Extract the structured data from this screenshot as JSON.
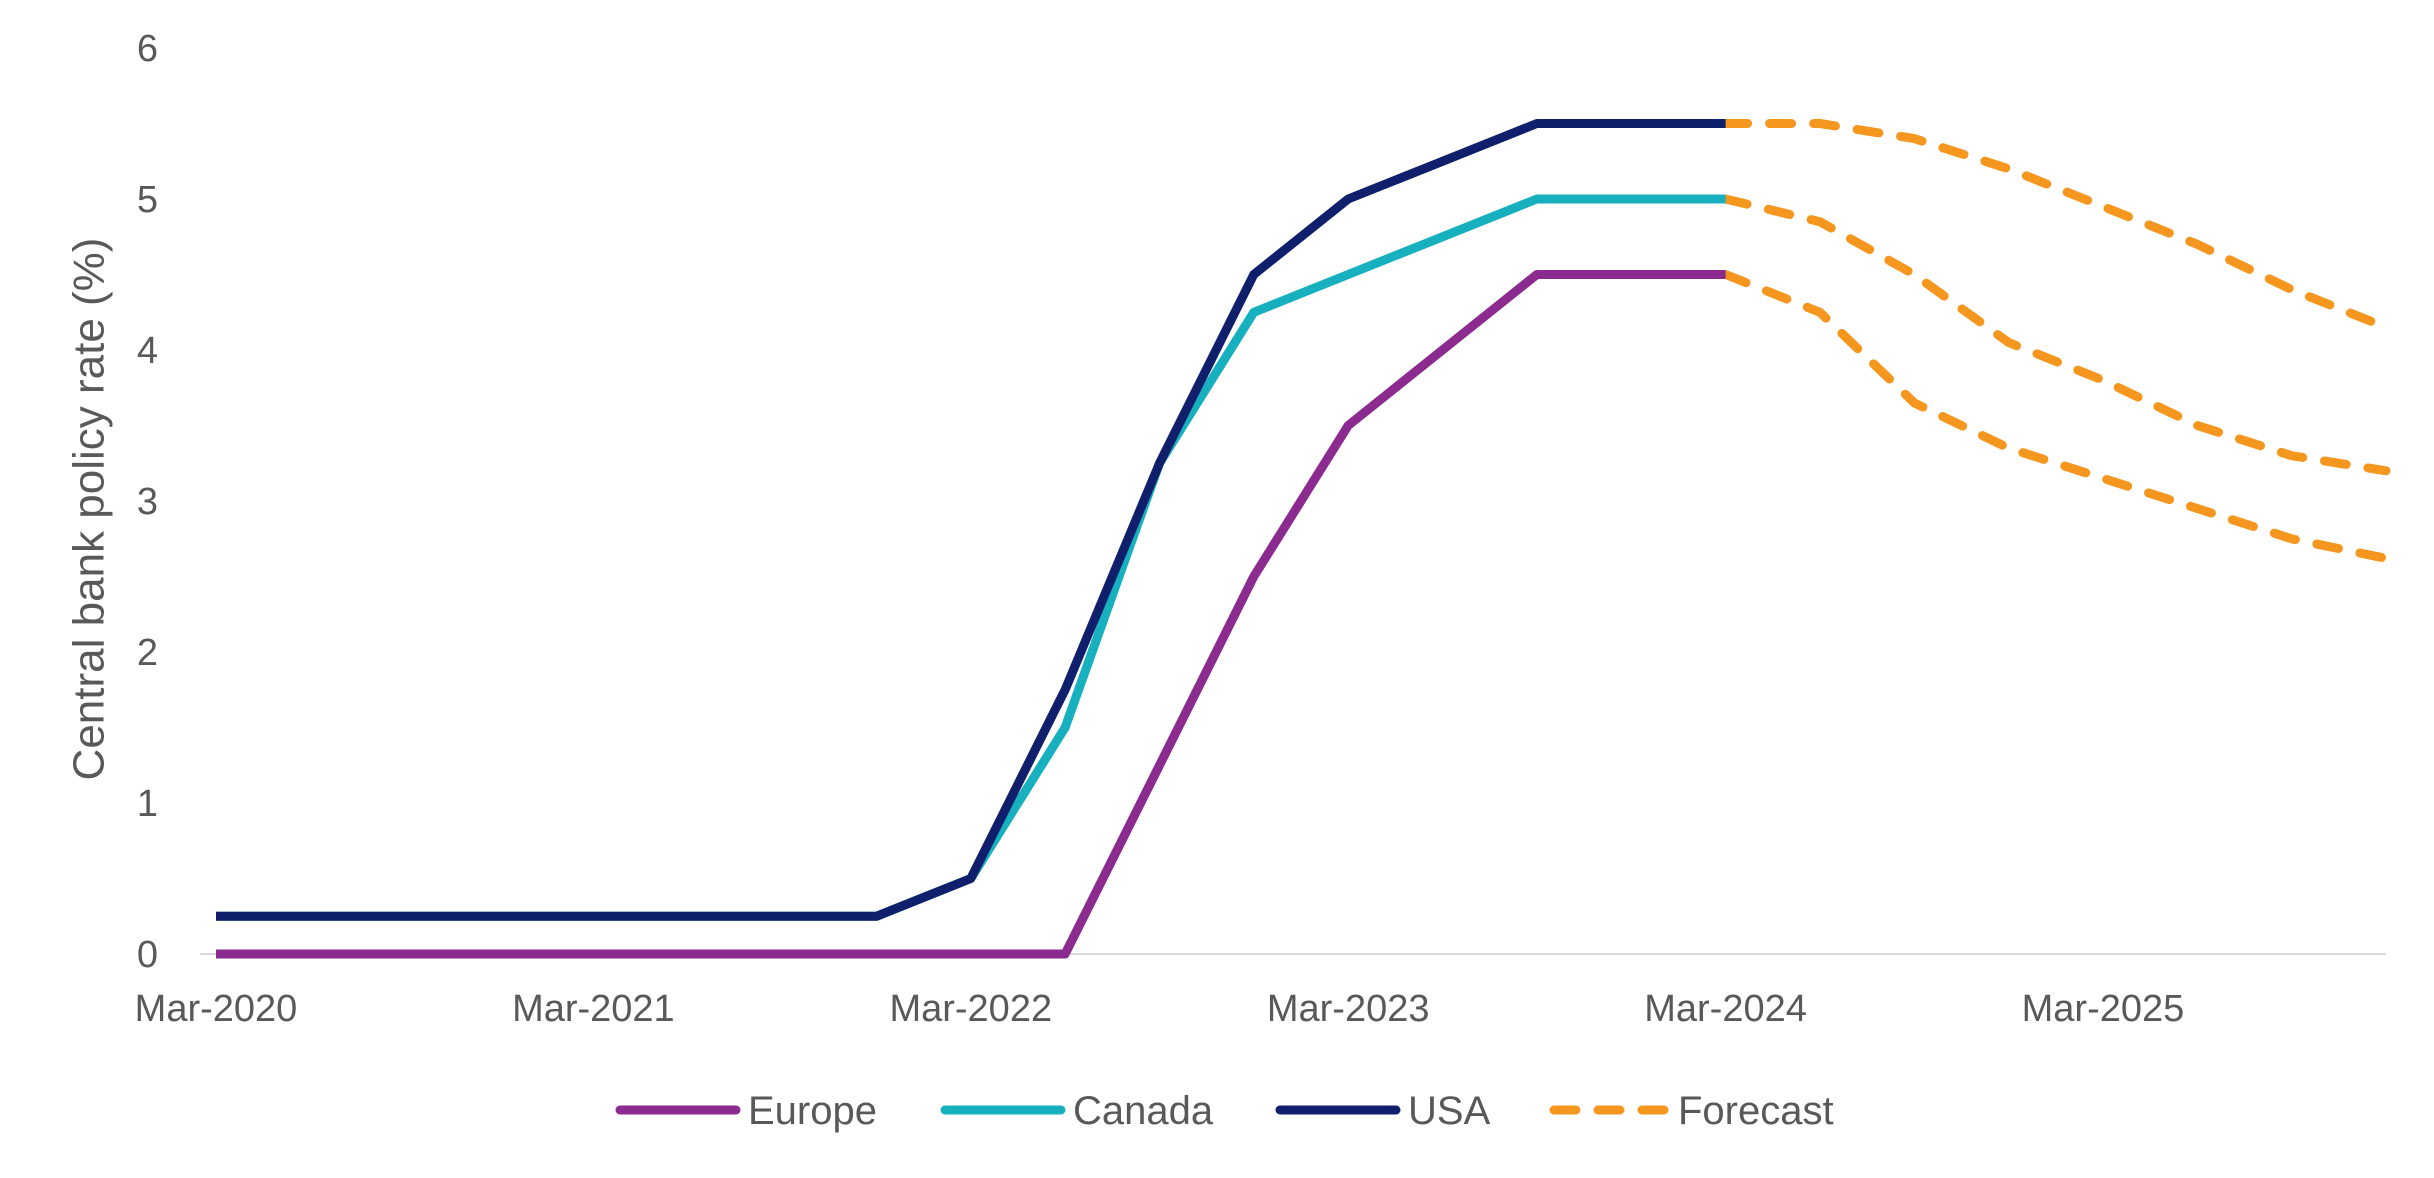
{
  "chart_data": {
    "type": "line",
    "title": "",
    "xlabel": "",
    "ylabel": "Central bank policy rate (%)",
    "ylim": [
      0,
      6
    ],
    "yticks": [
      0,
      1,
      2,
      3,
      4,
      5,
      6
    ],
    "xlim": [
      "Mar-2020",
      "Sep-2025"
    ],
    "x_tick_labels": [
      "Mar-2020",
      "Mar-2021",
      "Mar-2022",
      "Mar-2023",
      "Mar-2024",
      "Mar-2025"
    ],
    "grid": false,
    "legend_position": "bottom",
    "series": [
      {
        "name": "Europe",
        "color": "#8B2A8F",
        "style": "solid",
        "points": [
          [
            "2020-03",
            0
          ],
          [
            "2021-03",
            0
          ],
          [
            "2022-03",
            0
          ],
          [
            "2022-06",
            0
          ],
          [
            "2022-09",
            1.25
          ],
          [
            "2022-12",
            2.5
          ],
          [
            "2023-03",
            3.5
          ],
          [
            "2023-06",
            4.0
          ],
          [
            "2023-09",
            4.5
          ],
          [
            "2023-12",
            4.5
          ],
          [
            "2024-03",
            4.5
          ]
        ]
      },
      {
        "name": "Canada",
        "color": "#16B0BF",
        "style": "solid",
        "points": [
          [
            "2020-03",
            0.25
          ],
          [
            "2021-03",
            0.25
          ],
          [
            "2021-12",
            0.25
          ],
          [
            "2022-03",
            0.5
          ],
          [
            "2022-06",
            1.5
          ],
          [
            "2022-09",
            3.25
          ],
          [
            "2022-12",
            4.25
          ],
          [
            "2023-03",
            4.5
          ],
          [
            "2023-06",
            4.75
          ],
          [
            "2023-09",
            5.0
          ],
          [
            "2023-12",
            5.0
          ],
          [
            "2024-03",
            5.0
          ]
        ]
      },
      {
        "name": "USA",
        "color": "#0F1F6B",
        "style": "solid",
        "points": [
          [
            "2020-03",
            0.25
          ],
          [
            "2021-03",
            0.25
          ],
          [
            "2021-12",
            0.25
          ],
          [
            "2022-03",
            0.5
          ],
          [
            "2022-06",
            1.75
          ],
          [
            "2022-09",
            3.25
          ],
          [
            "2022-12",
            4.5
          ],
          [
            "2023-03",
            5.0
          ],
          [
            "2023-06",
            5.25
          ],
          [
            "2023-09",
            5.5
          ],
          [
            "2023-12",
            5.5
          ],
          [
            "2024-03",
            5.5
          ]
        ]
      },
      {
        "name": "Forecast",
        "color": "#F5961E",
        "style": "dashed",
        "show_in_legend": true,
        "points": [
          [
            "2024-03",
            5.5
          ],
          [
            "2024-06",
            5.5
          ],
          [
            "2024-09",
            5.4
          ],
          [
            "2024-12",
            5.2
          ],
          [
            "2025-03",
            4.95
          ],
          [
            "2025-06",
            4.7
          ],
          [
            "2025-09",
            4.4
          ],
          [
            "2025-12",
            4.15
          ]
        ]
      },
      {
        "name": "",
        "color": "#F5961E",
        "style": "dashed",
        "show_in_legend": false,
        "points": [
          [
            "2024-03",
            5.0
          ],
          [
            "2024-06",
            4.85
          ],
          [
            "2024-09",
            4.5
          ],
          [
            "2024-12",
            4.05
          ],
          [
            "2025-03",
            3.8
          ],
          [
            "2025-06",
            3.5
          ],
          [
            "2025-09",
            3.3
          ],
          [
            "2025-12",
            3.2
          ]
        ]
      },
      {
        "name": "",
        "color": "#F5961E",
        "style": "dashed",
        "show_in_legend": false,
        "points": [
          [
            "2024-03",
            4.5
          ],
          [
            "2024-06",
            4.25
          ],
          [
            "2024-09",
            3.65
          ],
          [
            "2024-12",
            3.35
          ],
          [
            "2025-03",
            3.15
          ],
          [
            "2025-06",
            2.95
          ],
          [
            "2025-09",
            2.75
          ],
          [
            "2025-12",
            2.62
          ]
        ]
      }
    ]
  }
}
